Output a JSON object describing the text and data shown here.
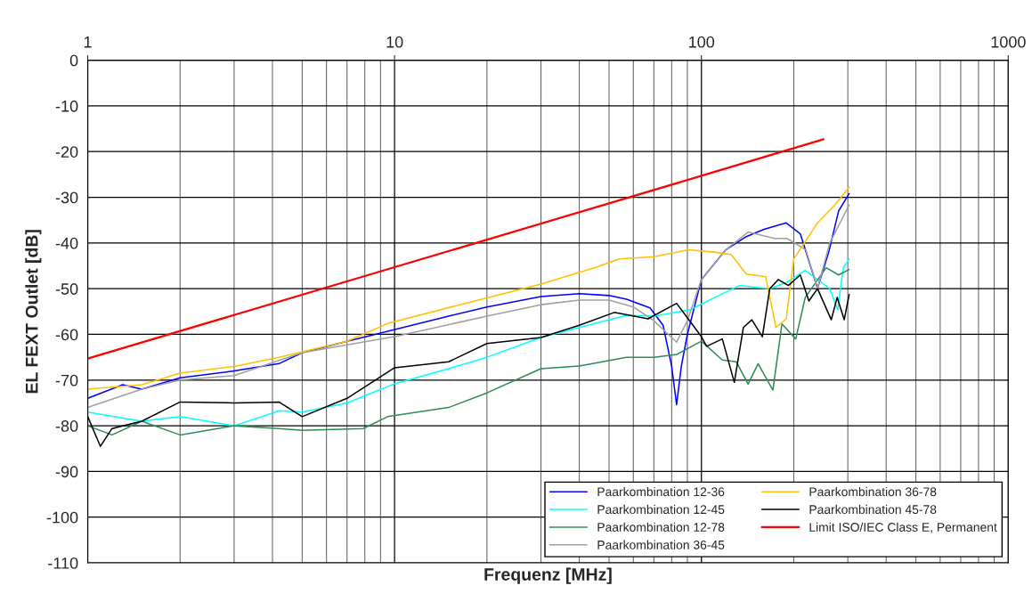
{
  "chart_data": {
    "type": "line",
    "xlabel": "Frequenz [MHz]",
    "ylabel": "EL FEXT Outlet [dB]",
    "log": "x",
    "xlim": [
      1,
      1000
    ],
    "xticks": [
      1,
      10,
      100,
      1000
    ],
    "ylim": [
      -110,
      0
    ],
    "yticks": [
      -110,
      -100,
      -90,
      -80,
      -70,
      -60,
      -50,
      -40,
      -30,
      -20,
      -10,
      0
    ],
    "grid": true,
    "legend": "bottom right",
    "marker": "none",
    "line_style": "solid",
    "series": [
      {
        "name": "Paarkombination 12-36",
        "color": "#0000ff",
        "x": [
          1,
          1.3,
          1.5,
          2,
          3,
          4.2,
          5,
          7,
          9.5,
          15,
          20,
          30,
          40,
          50,
          57,
          68,
          75,
          80,
          83,
          86,
          90,
          100,
          120,
          140,
          160,
          189,
          210,
          239,
          260,
          280,
          303
        ],
        "values": [
          -74,
          -71,
          -72,
          -69.5,
          -68,
          -66.4,
          -64,
          -61.5,
          -59.3,
          -56,
          -54,
          -51.7,
          -51.1,
          -51.5,
          -52.3,
          -54.2,
          -58,
          -67,
          -75.4,
          -67,
          -60,
          -48,
          -41.5,
          -38.6,
          -37,
          -35.6,
          -38,
          -49.9,
          -42,
          -33,
          -29.2
        ]
      },
      {
        "name": "Paarkombination 12-45",
        "color": "#00ffff",
        "x": [
          1,
          1.5,
          2,
          3,
          4.2,
          5,
          7,
          10,
          15,
          20,
          30,
          40,
          57,
          70,
          92,
          110,
          133,
          167,
          190,
          218,
          262,
          278,
          290,
          303
        ],
        "values": [
          -77,
          -79,
          -78,
          -80,
          -76.7,
          -77,
          -75,
          -70.8,
          -67.5,
          -65,
          -60.7,
          -58.5,
          -55.8,
          -56,
          -54.6,
          -52,
          -49.3,
          -50,
          -48.6,
          -46,
          -50,
          -54.6,
          -45.4,
          -43.5
        ]
      },
      {
        "name": "Paarkombination 12-78",
        "color": "#2e8b57",
        "x": [
          1,
          1.2,
          1.5,
          2,
          3,
          4.2,
          5,
          7.9,
          9.5,
          15,
          20,
          30,
          40,
          57,
          70,
          83,
          100,
          117,
          130,
          142,
          153,
          171,
          183,
          203,
          218,
          255,
          280,
          303
        ],
        "values": [
          -80,
          -82,
          -79,
          -82,
          -80,
          -80.6,
          -81,
          -80.6,
          -78,
          -76,
          -72.8,
          -67.5,
          -66.9,
          -65,
          -65,
          -64.4,
          -61.5,
          -65.6,
          -66,
          -70.9,
          -66.4,
          -72.2,
          -57.7,
          -61,
          -51.9,
          -45.4,
          -47,
          -45.8
        ]
      },
      {
        "name": "Paarkombination 36-45",
        "color": "#a0a0a0",
        "x": [
          1,
          1.5,
          2,
          3,
          5,
          10,
          20,
          30,
          40,
          50,
          60,
          70,
          78,
          83,
          90,
          100,
          120,
          142,
          173,
          190,
          219,
          239,
          262,
          303
        ],
        "values": [
          -76,
          -72,
          -70,
          -69,
          -64,
          -60.5,
          -56,
          -53.5,
          -52.5,
          -52.5,
          -54,
          -57,
          -60,
          -61.7,
          -57,
          -48,
          -41.5,
          -37.6,
          -39,
          -39,
          -41.5,
          -50,
          -40,
          -31.7
        ]
      },
      {
        "name": "Paarkombination 36-78",
        "color": "#ffc000",
        "x": [
          1,
          1.5,
          2,
          3,
          4.2,
          7,
          9.6,
          20,
          30,
          45,
          54,
          70,
          91,
          110,
          125,
          140,
          162,
          175,
          189,
          200,
          239,
          272,
          303
        ],
        "values": [
          -72,
          -71,
          -68.5,
          -67,
          -65,
          -61.5,
          -57.5,
          -52,
          -49,
          -45.4,
          -43.5,
          -43,
          -41.5,
          -42,
          -42.5,
          -46.8,
          -47.4,
          -58.5,
          -56.6,
          -43.5,
          -35.6,
          -31.7,
          -27.8
        ]
      },
      {
        "name": "Paarkombination 45-78",
        "color": "#000000",
        "x": [
          1,
          1.1,
          1.2,
          1.5,
          2,
          3,
          4.2,
          5,
          7,
          10,
          15,
          20,
          30,
          40,
          52,
          67,
          83,
          100,
          104,
          117,
          128,
          137,
          146,
          158,
          167,
          178,
          192,
          210,
          224,
          239,
          265,
          277,
          292,
          303
        ],
        "values": [
          -78,
          -84.5,
          -80.6,
          -79,
          -74.8,
          -75,
          -74.8,
          -78,
          -74,
          -67.3,
          -66,
          -62,
          -60.7,
          -58,
          -55.2,
          -56.6,
          -53.2,
          -60.5,
          -62.6,
          -61,
          -70.5,
          -58.5,
          -56.8,
          -60.5,
          -50,
          -48,
          -49.3,
          -47,
          -52.7,
          -50,
          -56.8,
          -51.9,
          -56.8,
          -51.3
        ]
      },
      {
        "name": "Limit ISO/IEC Class E, Permanent",
        "color": "#ff0000",
        "x": [
          1,
          10,
          100,
          250
        ],
        "values": [
          -65.3,
          -45.3,
          -25.3,
          -17.3
        ]
      }
    ]
  }
}
